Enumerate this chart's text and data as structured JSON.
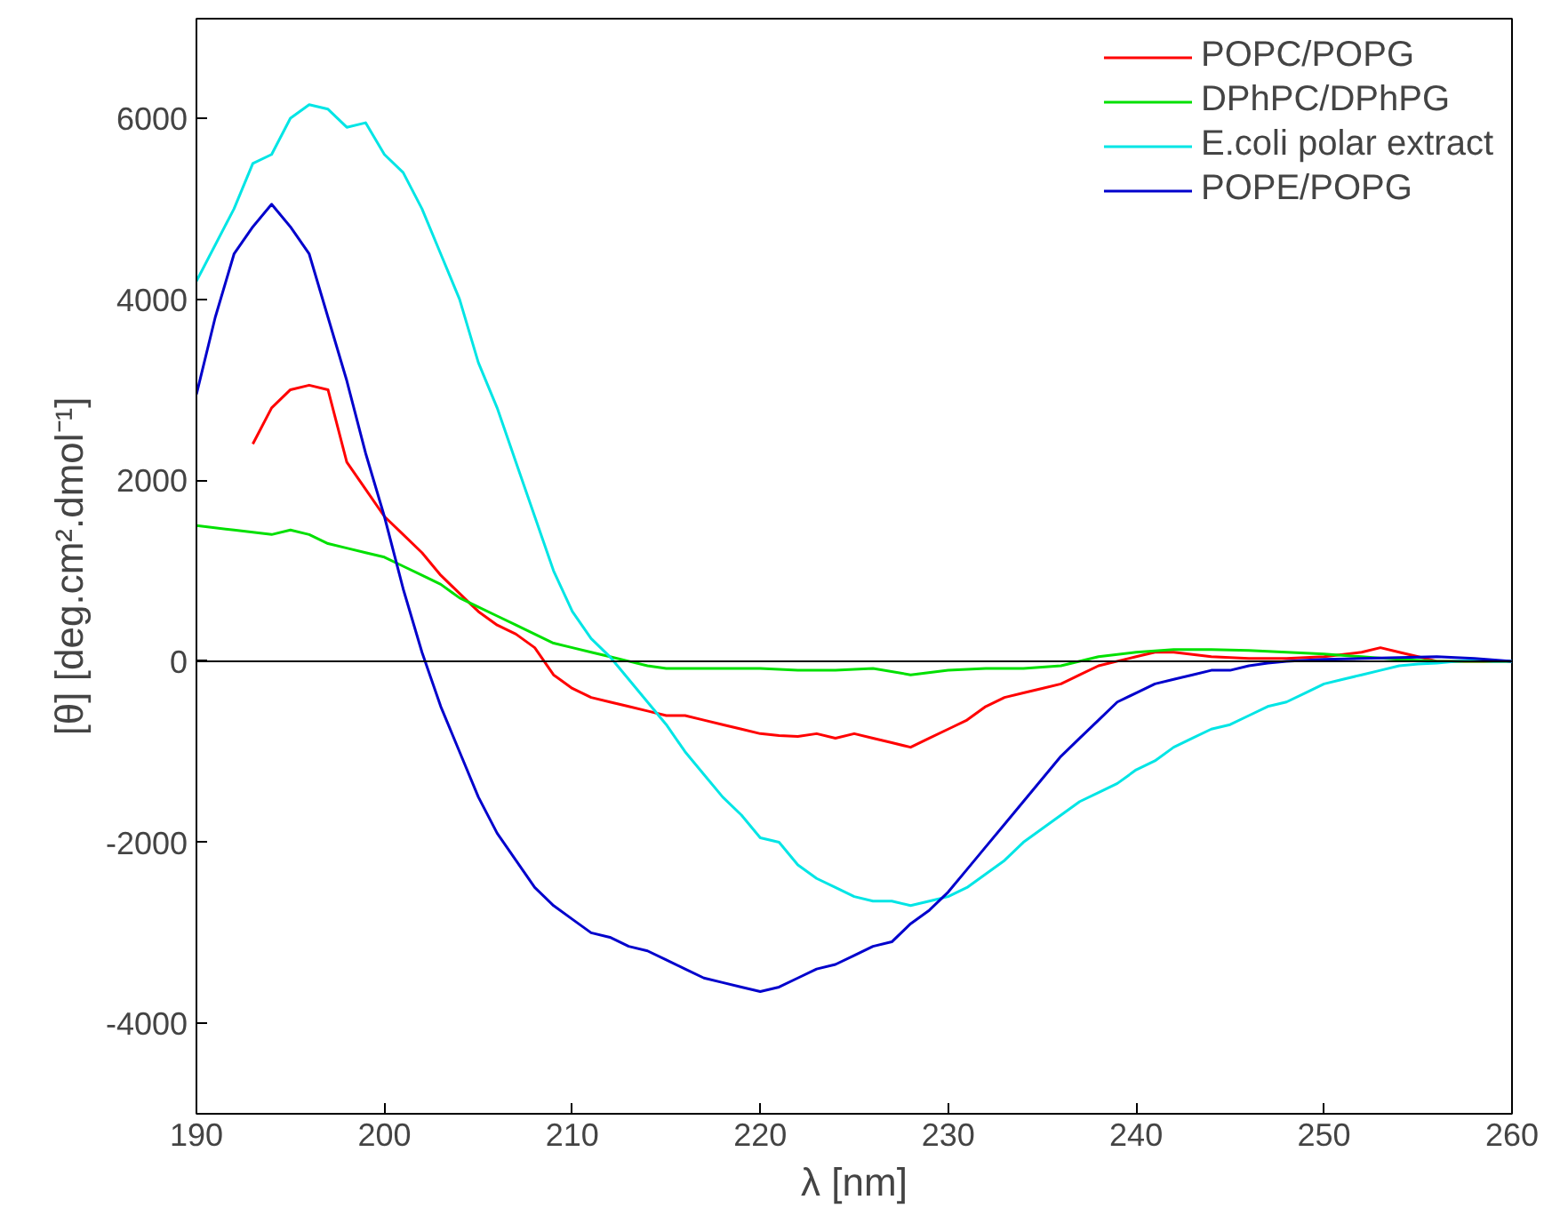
{
  "chart_data": {
    "type": "line",
    "xlabel": "λ [nm]",
    "ylabel": "[θ] [deg.cm².dmol⁻¹]",
    "xlim": [
      190,
      260
    ],
    "ylim": [
      -5000,
      7100
    ],
    "xticks": [
      190,
      200,
      210,
      220,
      230,
      240,
      250,
      260
    ],
    "yticks": [
      -4000,
      -2000,
      0,
      2000,
      4000,
      6000
    ],
    "grid": false,
    "legend": "top right",
    "marker": "none",
    "line_style": "solid",
    "ref_lines": [
      {
        "axis": "y",
        "value": 0,
        "color": "#000000"
      }
    ],
    "series": [
      {
        "name": "POPC/POPG",
        "color": "#ff0000",
        "x": [
          193,
          194,
          195,
          196,
          197,
          198,
          199,
          200,
          201,
          202,
          203,
          204,
          205,
          206,
          207,
          208,
          209,
          210,
          211,
          212,
          213,
          214,
          215,
          216,
          217,
          218,
          219,
          220,
          221,
          222,
          223,
          224,
          225,
          226,
          227,
          228,
          229,
          230,
          231,
          232,
          233,
          234,
          235,
          236,
          237,
          238,
          239,
          240,
          241,
          242,
          244,
          246,
          248,
          250,
          252,
          253,
          254,
          255,
          256,
          258,
          260
        ],
        "values": [
          2400,
          2800,
          3000,
          3050,
          3000,
          2200,
          1900,
          1600,
          1400,
          1200,
          950,
          750,
          550,
          400,
          300,
          150,
          -150,
          -300,
          -400,
          -450,
          -500,
          -550,
          -600,
          -600,
          -650,
          -700,
          -750,
          -800,
          -820,
          -830,
          -800,
          -850,
          -800,
          -850,
          -900,
          -950,
          -850,
          -750,
          -650,
          -500,
          -400,
          -350,
          -300,
          -250,
          -150,
          -50,
          0,
          50,
          100,
          100,
          50,
          30,
          30,
          50,
          100,
          150,
          100,
          50,
          0,
          0,
          0
        ]
      },
      {
        "name": "DPhPC/DPhPG",
        "color": "#00e000",
        "x": [
          190,
          192,
          194,
          195,
          196,
          197,
          198,
          199,
          200,
          201,
          202,
          203,
          204,
          205,
          206,
          207,
          208,
          209,
          210,
          211,
          212,
          213,
          214,
          215,
          216,
          218,
          220,
          222,
          224,
          226,
          228,
          230,
          232,
          234,
          236,
          238,
          240,
          242,
          244,
          246,
          248,
          250,
          252,
          254,
          256,
          258,
          260
        ],
        "values": [
          1500,
          1450,
          1400,
          1450,
          1400,
          1300,
          1250,
          1200,
          1150,
          1050,
          950,
          850,
          700,
          600,
          500,
          400,
          300,
          200,
          150,
          100,
          50,
          0,
          -50,
          -80,
          -80,
          -80,
          -80,
          -100,
          -100,
          -80,
          -150,
          -100,
          -80,
          -80,
          -50,
          50,
          100,
          130,
          130,
          120,
          100,
          80,
          50,
          20,
          0,
          0,
          0
        ]
      },
      {
        "name": "E.coli polar extract",
        "color": "#00e5e5",
        "x": [
          190,
          192,
          193,
          194,
          195,
          196,
          197,
          198,
          199,
          200,
          201,
          202,
          203,
          204,
          205,
          206,
          207,
          208,
          209,
          210,
          211,
          212,
          213,
          214,
          215,
          216,
          217,
          218,
          219,
          220,
          221,
          222,
          223,
          224,
          225,
          226,
          227,
          228,
          229,
          230,
          231,
          232,
          233,
          234,
          235,
          236,
          237,
          238,
          239,
          240,
          241,
          242,
          243,
          244,
          245,
          246,
          247,
          248,
          249,
          250,
          251,
          252,
          253,
          254,
          255,
          256,
          257,
          258,
          259,
          260
        ],
        "values": [
          4200,
          5000,
          5500,
          5600,
          6000,
          6150,
          6100,
          5900,
          5950,
          5600,
          5400,
          5000,
          4500,
          4000,
          3300,
          2800,
          2200,
          1600,
          1000,
          550,
          250,
          50,
          -200,
          -450,
          -700,
          -1000,
          -1250,
          -1500,
          -1700,
          -1950,
          -2000,
          -2250,
          -2400,
          -2500,
          -2600,
          -2650,
          -2650,
          -2700,
          -2650,
          -2600,
          -2500,
          -2350,
          -2200,
          -2000,
          -1850,
          -1700,
          -1550,
          -1450,
          -1350,
          -1200,
          -1100,
          -950,
          -850,
          -750,
          -700,
          -600,
          -500,
          -450,
          -350,
          -250,
          -200,
          -150,
          -100,
          -50,
          -30,
          -20,
          0,
          10,
          0,
          0
        ]
      },
      {
        "name": "POPE/POPG",
        "color": "#0000cc",
        "x": [
          190,
          191,
          192,
          193,
          194,
          195,
          196,
          197,
          198,
          199,
          200,
          201,
          202,
          203,
          204,
          205,
          206,
          207,
          208,
          209,
          210,
          211,
          212,
          213,
          214,
          215,
          216,
          217,
          218,
          219,
          220,
          221,
          222,
          223,
          224,
          225,
          226,
          227,
          228,
          229,
          230,
          231,
          232,
          233,
          234,
          235,
          236,
          237,
          238,
          239,
          240,
          241,
          242,
          243,
          244,
          245,
          246,
          247,
          248,
          250,
          252,
          254,
          256,
          258,
          260
        ],
        "values": [
          2950,
          3800,
          4500,
          4800,
          5050,
          4800,
          4500,
          3800,
          3100,
          2300,
          1600,
          800,
          100,
          -500,
          -1000,
          -1500,
          -1900,
          -2200,
          -2500,
          -2700,
          -2850,
          -3000,
          -3050,
          -3150,
          -3200,
          -3300,
          -3400,
          -3500,
          -3550,
          -3600,
          -3650,
          -3600,
          -3500,
          -3400,
          -3350,
          -3250,
          -3150,
          -3100,
          -2900,
          -2750,
          -2550,
          -2300,
          -2050,
          -1800,
          -1550,
          -1300,
          -1050,
          -850,
          -650,
          -450,
          -350,
          -250,
          -200,
          -150,
          -100,
          -100,
          -50,
          -20,
          0,
          20,
          30,
          40,
          50,
          30,
          0
        ]
      }
    ]
  }
}
